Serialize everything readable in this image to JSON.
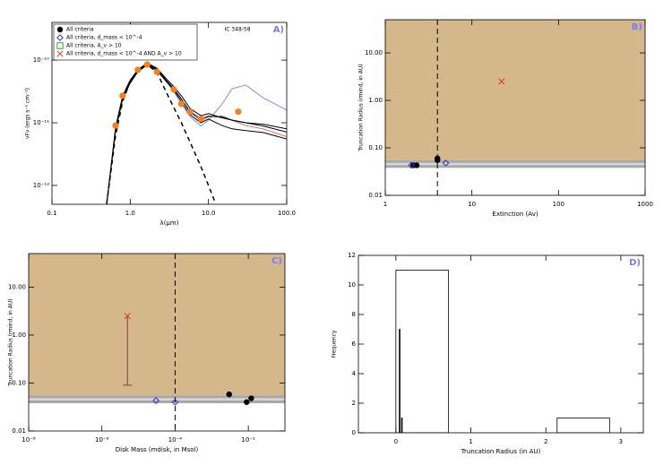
{
  "chart_data": [
    {
      "type": "line",
      "panel_label": "A)",
      "annotation": "IC 348-58",
      "xlabel": "λ(μm)",
      "ylabel": "νFν (ergs s⁻¹ cm⁻²)",
      "xlog": true,
      "ylog": true,
      "xlim": [
        0.1,
        100
      ],
      "ylim": [
        5e-13,
        4e-10
      ],
      "xticks": [
        0.1,
        {
          "value": 1,
          "label": "1.0"
        },
        {
          "value": 10,
          "label": "10.0"
        },
        {
          "value": 100,
          "label": "100.0"
        }
      ],
      "yticks": [
        {
          "value": 1e-12,
          "label": "10⁻¹²"
        },
        {
          "value": 1e-11,
          "label": "10⁻¹¹"
        },
        {
          "value": 1e-10,
          "label": "10⁻¹⁰"
        }
      ],
      "legend": [
        {
          "label": "All criteria",
          "marker": "dot",
          "color": "#000000"
        },
        {
          "label": "All criteria, d_mass < 10^-4",
          "marker": "diamond",
          "color": "#3333cc"
        },
        {
          "label": "All criteria, A_v > 10",
          "marker": "square",
          "color": "#33aa33"
        },
        {
          "label": "All criteria, d_mass < 10^-4 AND A_v > 10",
          "marker": "cross",
          "color": "#dd3333"
        }
      ],
      "lines": [
        {
          "color": "#8888dd",
          "dashed": false,
          "x": [
            0.5,
            0.65,
            0.8,
            1.0,
            1.25,
            1.65,
            2.2,
            3.0,
            3.6,
            4.5,
            5.8,
            8,
            10,
            15,
            20,
            30,
            50,
            100
          ],
          "y": [
            5e-13,
            7.9e-12,
            2.5e-11,
            4.5e-11,
            6.8e-11,
            8.7e-11,
            7.1e-11,
            4.5e-11,
            3.2e-11,
            2e-11,
            1.26e-11,
            8.9e-12,
            1.1e-11,
            2e-11,
            3.5e-11,
            4e-11,
            2.5e-11,
            1.6e-11
          ]
        },
        {
          "color": "#dd6666",
          "dashed": false,
          "x": [
            0.5,
            0.65,
            0.8,
            1.0,
            1.25,
            1.65,
            2.2,
            3.0,
            3.6,
            4.5,
            5.8,
            8,
            10,
            15,
            20,
            30,
            50,
            100
          ],
          "y": [
            5e-13,
            7.9e-12,
            2.5e-11,
            4.5e-11,
            6.8e-11,
            8.7e-11,
            7.1e-11,
            4.5e-11,
            3.5e-11,
            2.4e-11,
            1.5e-11,
            1.2e-11,
            1.3e-11,
            1.2e-11,
            1.1e-11,
            9e-12,
            8e-12,
            6e-12
          ]
        },
        {
          "color": "#000000",
          "dashed": false,
          "x": [
            0.5,
            0.65,
            0.8,
            1.0,
            1.25,
            1.65,
            2.2,
            3.0,
            3.6,
            4.5,
            5.8,
            8,
            10,
            15,
            20,
            30,
            50,
            100
          ],
          "y": [
            5e-13,
            7.9e-12,
            2.5e-11,
            4.5e-11,
            6.8e-11,
            8.7e-11,
            7.1e-11,
            4.5e-11,
            3.5e-11,
            2.4e-11,
            1.5e-11,
            1.1e-11,
            1.26e-11,
            1.26e-11,
            1.1e-11,
            1e-11,
            8.9e-12,
            7.1e-12
          ]
        },
        {
          "color": "#000000",
          "dashed": false,
          "x": [
            0.5,
            0.65,
            0.8,
            1.0,
            1.25,
            1.65,
            2.2,
            3.0,
            3.6,
            4.5,
            5.8,
            8,
            10,
            15,
            20,
            30,
            50,
            100
          ],
          "y": [
            5e-13,
            8.5e-12,
            2.7e-11,
            4.8e-11,
            7e-11,
            9e-11,
            7.4e-11,
            4.8e-11,
            3.8e-11,
            2.7e-11,
            1.7e-11,
            1.3e-11,
            1.4e-11,
            1.2e-11,
            1.1e-11,
            1e-11,
            9.5e-12,
            8e-12
          ]
        },
        {
          "color": "#000000",
          "dashed": false,
          "x": [
            0.5,
            0.65,
            0.8,
            1.0,
            1.25,
            1.65,
            2.2,
            3.0,
            3.6,
            4.5,
            5.8,
            8,
            10,
            15,
            20,
            30,
            50,
            100
          ],
          "y": [
            5e-13,
            7.5e-12,
            2.4e-11,
            4.3e-11,
            6.5e-11,
            8.4e-11,
            6.8e-11,
            4.3e-11,
            3.3e-11,
            2.2e-11,
            1.35e-11,
            1e-11,
            1.15e-11,
            9e-12,
            8e-12,
            7.5e-12,
            7e-12,
            5.5e-12
          ]
        },
        {
          "color": "#000000",
          "dashed": true,
          "x": [
            0.5,
            0.65,
            0.8,
            1.0,
            1.25,
            1.65,
            2.2,
            3.0,
            4.5,
            6,
            8,
            10,
            12
          ],
          "y": [
            5e-13,
            6.3e-12,
            2.2e-11,
            4.5e-11,
            6.8e-11,
            8.5e-11,
            6.3e-11,
            2.8e-11,
            1e-11,
            4.5e-12,
            2e-12,
            1e-12,
            5.6e-13
          ]
        }
      ],
      "points": {
        "color": "#f08020",
        "x": [
          0.65,
          0.8,
          1.25,
          1.65,
          2.2,
          3.6,
          4.5,
          5.8,
          8.0,
          24
        ],
        "y": [
          9e-12,
          2.7e-11,
          7e-11,
          8.5e-11,
          6.5e-11,
          3.4e-11,
          2e-11,
          1.5e-11,
          1.15e-11,
          1.5e-11
        ]
      }
    },
    {
      "type": "scatter",
      "panel_label": "B)",
      "xlabel": "Extinction (Av)",
      "ylabel": "Truncation Radius (rmind, in AU)",
      "xlog": true,
      "ylog": true,
      "xlim": [
        1,
        1000
      ],
      "ylim": [
        0.01,
        50
      ],
      "xticks": [
        1,
        10,
        100,
        1000
      ],
      "yticks": [
        {
          "value": 0.01,
          "label": "0.01"
        },
        {
          "value": 0.1,
          "label": "0.10"
        },
        {
          "value": 1,
          "label": "1.00"
        },
        {
          "value": 10,
          "label": "10.00"
        }
      ],
      "shade_above": 0.055,
      "shade_color": "#d4b88c",
      "band": [
        0.038,
        0.055
      ],
      "vline": 4,
      "series": [
        {
          "marker": "dot",
          "color": "#000000",
          "x": [
            2.1,
            2.3,
            4,
            4
          ],
          "y": [
            0.043,
            0.043,
            0.055,
            0.06
          ]
        },
        {
          "marker": "diamond",
          "color": "#3333cc",
          "x": [
            2,
            5
          ],
          "y": [
            0.043,
            0.048
          ]
        },
        {
          "marker": "cross",
          "color": "#dd3333",
          "x": [
            22
          ],
          "y": [
            2.5
          ]
        }
      ]
    },
    {
      "type": "scatter",
      "panel_label": "C)",
      "xlabel": "Disk Mass (mdisk, in Msol)",
      "ylabel": "Truncation Radius (rmind, in AU)",
      "xlog": true,
      "ylog": true,
      "xlim": [
        1e-08,
        0.1
      ],
      "ylim": [
        0.01,
        50
      ],
      "xticks": [
        {
          "value": 1e-08,
          "label": "10⁻⁸"
        },
        {
          "value": 1e-06,
          "label": "10⁻⁶"
        },
        {
          "value": 0.0001,
          "label": "10⁻⁴"
        },
        {
          "value": 0.01,
          "label": "10⁻²"
        }
      ],
      "yticks": [
        {
          "value": 0.01,
          "label": "0.01"
        },
        {
          "value": 0.1,
          "label": "0.10"
        },
        {
          "value": 1,
          "label": "1.00"
        },
        {
          "value": 10,
          "label": "10.00"
        }
      ],
      "shade_above": 0.055,
      "shade_color": "#d4b88c",
      "band": [
        0.038,
        0.055
      ],
      "vline": 0.0001,
      "series": [
        {
          "marker": "dot",
          "color": "#000000",
          "x": [
            0.003,
            0.009,
            0.012
          ],
          "y": [
            0.058,
            0.04,
            0.048
          ]
        },
        {
          "marker": "diamond",
          "color": "#3333cc",
          "x": [
            3e-05,
            0.0001
          ],
          "y": [
            0.043,
            0.04
          ]
        },
        {
          "marker": "cross",
          "color": "#dd3333",
          "x": [
            5e-06
          ],
          "y": [
            2.5
          ],
          "ylow": [
            0.09
          ]
        }
      ]
    },
    {
      "type": "histogram",
      "panel_label": "D)",
      "xlabel": "Truncation Radius (in AU)",
      "ylabel": "Frequency",
      "xlog": false,
      "ylog": false,
      "xlim": [
        -0.5,
        3.3
      ],
      "ylim": [
        0,
        12
      ],
      "xticks": [
        0,
        1,
        2,
        3
      ],
      "yticks": [
        0,
        2,
        4,
        6,
        8,
        10,
        12
      ],
      "histograms": [
        {
          "color": "#000000",
          "filled": false,
          "bins": [
            0,
            0.7,
            2.15,
            2.85
          ],
          "counts": [
            11,
            0,
            1
          ]
        },
        {
          "color": "#000000",
          "filled": true,
          "bins": [
            0.045,
            0.055,
            0.075,
            0.085
          ],
          "counts": [
            7,
            0,
            1
          ]
        }
      ]
    }
  ]
}
